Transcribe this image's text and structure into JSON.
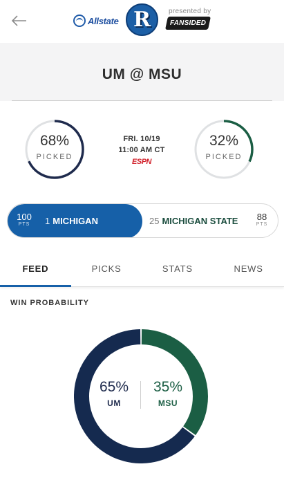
{
  "header": {
    "back_icon": "arrow-left-icon",
    "sponsor": "Allstate",
    "logo_letter": "R",
    "presented_by": "presented by",
    "partner": "FANSIDED"
  },
  "game": {
    "title": "UM @ MSU",
    "date": "FRI. 10/19",
    "time": "11:00 AM CT",
    "network": "ESPN"
  },
  "picks": {
    "left": {
      "percent": "68%",
      "label": "PICKED",
      "fraction": 0.68,
      "color": "#1f2b4d"
    },
    "right": {
      "percent": "32%",
      "label": "PICKED",
      "fraction": 0.32,
      "color": "#1b5e44"
    }
  },
  "matchup": {
    "left": {
      "points": "100",
      "pts_label": "PTS",
      "rank": "1",
      "name": "MICHIGAN"
    },
    "right": {
      "points": "88",
      "pts_label": "PTS",
      "rank": "25",
      "name": "MICHIGAN STATE"
    }
  },
  "tabs": [
    {
      "label": "FEED",
      "active": true
    },
    {
      "label": "PICKS",
      "active": false
    },
    {
      "label": "STATS",
      "active": false
    },
    {
      "label": "NEWS",
      "active": false
    }
  ],
  "win_probability": {
    "title": "WIN PROBABILITY",
    "left": {
      "percent": "65%",
      "team": "UM",
      "fraction": 0.65,
      "color": "#152a4f"
    },
    "right": {
      "percent": "35%",
      "team": "MSU",
      "fraction": 0.35,
      "color": "#1b5e44"
    }
  },
  "colors": {
    "accent": "#1660a8",
    "ring_track": "#dfe1e3"
  }
}
